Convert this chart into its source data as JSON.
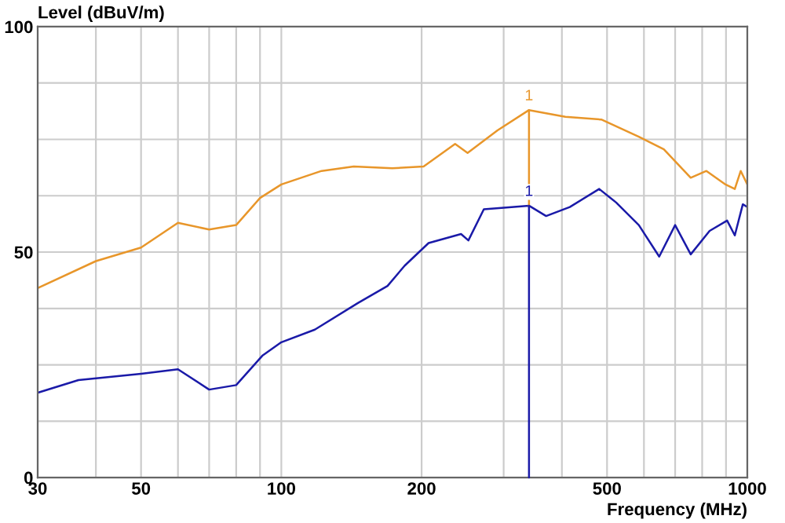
{
  "chart_data": {
    "type": "line",
    "xlabel": "Frequency (MHz)",
    "ylabel": "Level (dBuV/m)",
    "log": "x",
    "xlim": [
      30,
      1000
    ],
    "ylim": [
      0,
      100
    ],
    "xticks": [
      30,
      {
        "value": 40,
        "label": null
      },
      50,
      {
        "value": 60,
        "label": null
      },
      {
        "value": 70,
        "label": null
      },
      {
        "value": 80,
        "label": null
      },
      {
        "value": 90,
        "label": null
      },
      100,
      200,
      {
        "value": 300,
        "label": null
      },
      {
        "value": 400,
        "label": null
      },
      500,
      {
        "value": 600,
        "label": null
      },
      {
        "value": 700,
        "label": null
      },
      {
        "value": 800,
        "label": null
      },
      {
        "value": 900,
        "label": null
      },
      1000
    ],
    "yticks": [
      0,
      {
        "value": 12.5,
        "label": null
      },
      {
        "value": 25,
        "label": null
      },
      {
        "value": 37.5,
        "label": null
      },
      50,
      {
        "value": 62.5,
        "label": null
      },
      {
        "value": 75,
        "label": null
      },
      {
        "value": 87.5,
        "label": null
      },
      100
    ],
    "grid": true,
    "marker": "none",
    "line_style": "solid",
    "series": [
      {
        "color": "#e8962a",
        "x": [
          30,
          40,
          50,
          60,
          70,
          80,
          90,
          100,
          122,
          143,
          173,
          202,
          236,
          251,
          291,
          340,
          407,
          486,
          585,
          662,
          756,
          817,
          898,
          940,
          968,
          1000
        ],
        "values": [
          42,
          48,
          51,
          56.5,
          55,
          56,
          62,
          65,
          68,
          69,
          68.6,
          69,
          74,
          72,
          77,
          81.5,
          80,
          79.4,
          75.6,
          72.8,
          66.5,
          68,
          65,
          64,
          68,
          65
        ]
      },
      {
        "color": "#1a1aa8",
        "x": [
          30,
          36.7,
          50,
          60,
          70,
          80,
          91,
          100,
          118,
          146,
          169,
          184,
          207,
          243,
          252,
          272,
          340,
          370,
          416,
          481,
          523,
          585,
          647,
          700,
          756,
          830,
          905,
          940,
          978,
          1000
        ],
        "values": [
          18.8,
          21.6,
          23,
          24,
          19.5,
          20.5,
          27,
          30,
          32.8,
          38.7,
          42.5,
          47,
          52,
          54,
          52.6,
          59.5,
          60.3,
          58,
          60,
          64,
          61,
          56,
          49,
          56,
          49.5,
          54.7,
          57,
          53.7,
          60.6,
          60
        ]
      }
    ],
    "annotations": [
      {
        "text": "1",
        "x": 340,
        "y": 81.5
      },
      {
        "text": "1",
        "x": 340,
        "y": 60.3
      }
    ]
  }
}
